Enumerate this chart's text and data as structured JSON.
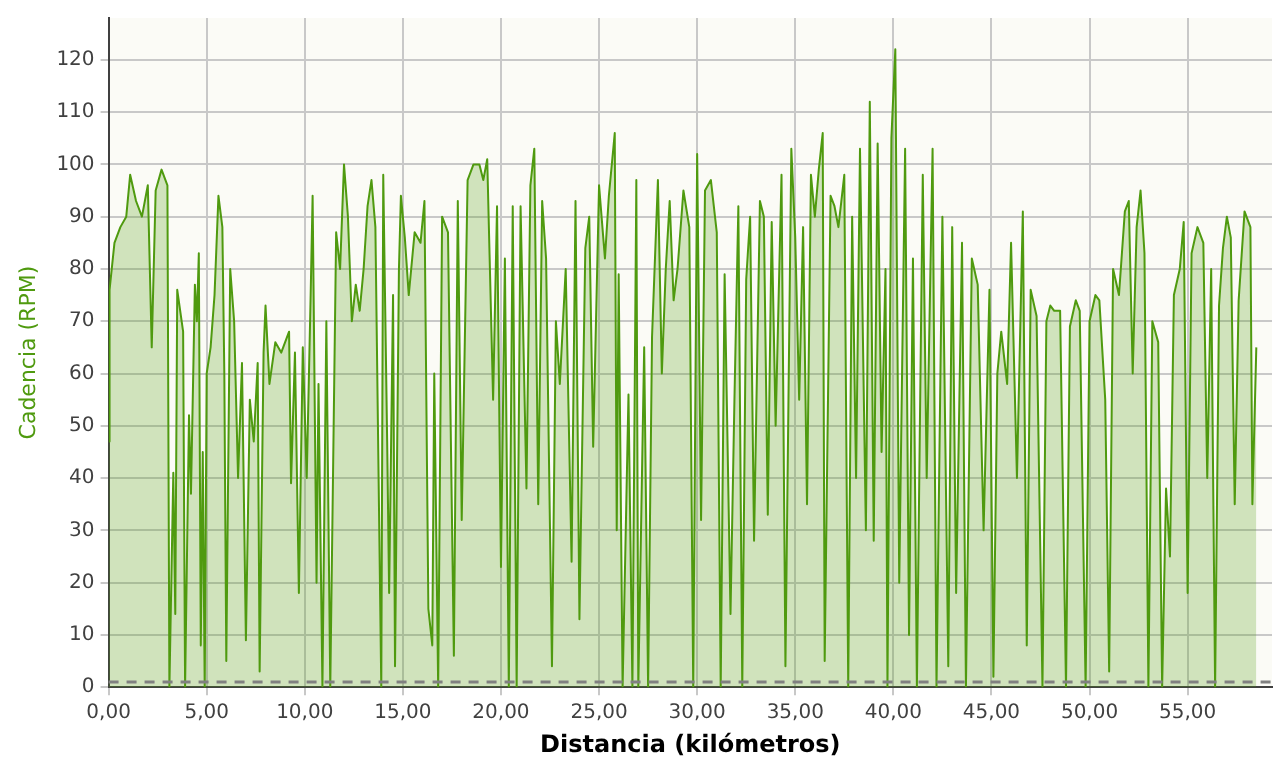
{
  "chart_data": {
    "type": "area",
    "xlabel": "Distancia (kilómetros)",
    "ylabel": "Cadencia (RPM)",
    "xlim": [
      0,
      59.3
    ],
    "ylim": [
      0,
      128
    ],
    "xticks": [
      {
        "value": 0,
        "label": "0,00"
      },
      {
        "value": 5,
        "label": "5,00"
      },
      {
        "value": 10,
        "label": "10,00"
      },
      {
        "value": 15,
        "label": "15,00"
      },
      {
        "value": 20,
        "label": "20,00"
      },
      {
        "value": 25,
        "label": "25,00"
      },
      {
        "value": 30,
        "label": "30,00"
      },
      {
        "value": 35,
        "label": "35,00"
      },
      {
        "value": 40,
        "label": "40,00"
      },
      {
        "value": 45,
        "label": "45,00"
      },
      {
        "value": 50,
        "label": "50,00"
      },
      {
        "value": 55,
        "label": "55,00"
      }
    ],
    "yticks": [
      0,
      10,
      20,
      30,
      40,
      50,
      60,
      70,
      80,
      90,
      100,
      110,
      120
    ],
    "grid": true,
    "legend": false,
    "marker": "none",
    "line_style": "solid",
    "ref_lines": [
      {
        "axis": "y",
        "value": 1,
        "color": "#808080",
        "line_style": "dashed"
      }
    ],
    "series": [
      {
        "color": "#4f9a0f",
        "x": [
          0,
          0.05,
          0.3,
          0.6,
          0.9,
          1.1,
          1.4,
          1.7,
          2.0,
          2.2,
          2.4,
          2.7,
          3.0,
          3.1,
          3.3,
          3.4,
          3.5,
          3.8,
          3.9,
          4.1,
          4.2,
          4.4,
          4.5,
          4.6,
          4.7,
          4.8,
          4.9,
          5.0,
          5.2,
          5.4,
          5.6,
          5.8,
          5.9,
          6.0,
          6.2,
          6.4,
          6.6,
          6.8,
          7.0,
          7.2,
          7.4,
          7.6,
          7.7,
          7.9,
          8.0,
          8.2,
          8.5,
          8.8,
          9.2,
          9.3,
          9.5,
          9.7,
          9.9,
          10.1,
          10.3,
          10.4,
          10.6,
          10.7,
          10.9,
          11.1,
          11.3,
          11.6,
          11.8,
          12.0,
          12.2,
          12.4,
          12.6,
          12.8,
          13.0,
          13.2,
          13.4,
          13.6,
          13.9,
          14.0,
          14.2,
          14.3,
          14.5,
          14.6,
          14.8,
          14.9,
          15.1,
          15.3,
          15.6,
          15.9,
          16.1,
          16.3,
          16.5,
          16.6,
          16.8,
          17.0,
          17.3,
          17.6,
          17.8,
          18.0,
          18.3,
          18.6,
          18.9,
          19.1,
          19.3,
          19.6,
          19.8,
          20.0,
          20.2,
          20.4,
          20.6,
          20.8,
          21.0,
          21.3,
          21.5,
          21.7,
          21.9,
          22.1,
          22.3,
          22.6,
          22.8,
          23.0,
          23.3,
          23.6,
          23.8,
          24.0,
          24.3,
          24.5,
          24.7,
          25.0,
          25.3,
          25.5,
          25.8,
          25.9,
          26.0,
          26.2,
          26.5,
          26.7,
          26.9,
          27.0,
          27.3,
          27.5,
          27.7,
          28.0,
          28.2,
          28.4,
          28.6,
          28.8,
          29.0,
          29.3,
          29.6,
          29.8,
          30.0,
          30.2,
          30.4,
          30.7,
          31.0,
          31.2,
          31.4,
          31.7,
          31.9,
          32.1,
          32.3,
          32.5,
          32.7,
          32.9,
          33.2,
          33.4,
          33.6,
          33.8,
          34.0,
          34.3,
          34.5,
          34.8,
          35.0,
          35.2,
          35.4,
          35.6,
          35.8,
          36.0,
          36.2,
          36.4,
          36.5,
          36.8,
          37.0,
          37.2,
          37.5,
          37.7,
          37.9,
          38.1,
          38.3,
          38.6,
          38.8,
          39.0,
          39.2,
          39.4,
          39.6,
          39.7,
          39.9,
          40.1,
          40.3,
          40.6,
          40.8,
          41.0,
          41.2,
          41.5,
          41.7,
          42.0,
          42.2,
          42.5,
          42.8,
          43.0,
          43.2,
          43.5,
          43.7,
          44.0,
          44.3,
          44.6,
          44.9,
          45.1,
          45.3,
          45.5,
          45.8,
          46.0,
          46.3,
          46.6,
          46.8,
          47.0,
          47.3,
          47.6,
          47.8,
          48.0,
          48.2,
          48.5,
          48.8,
          49.0,
          49.3,
          49.5,
          49.8,
          50.0,
          50.3,
          50.5,
          50.8,
          51.0,
          51.2,
          51.5,
          51.8,
          52.0,
          52.2,
          52.4,
          52.6,
          52.8,
          53.0,
          53.2,
          53.5,
          53.7,
          53.9,
          54.1,
          54.3,
          54.6,
          54.8,
          55.0,
          55.2,
          55.5,
          55.8,
          56.0,
          56.2,
          56.4,
          56.6,
          56.8,
          57.0,
          57.2,
          57.4,
          57.6,
          57.9,
          58.2,
          58.3,
          58.5
        ],
        "values": [
          47,
          76,
          85,
          88,
          90,
          98,
          93,
          90,
          96,
          65,
          95,
          99,
          96,
          0,
          41,
          14,
          76,
          68,
          0,
          52,
          37,
          77,
          70,
          83,
          8,
          45,
          0,
          60,
          65,
          75,
          94,
          88,
          60,
          5,
          80,
          70,
          40,
          62,
          9,
          55,
          47,
          62,
          3,
          64,
          73,
          58,
          66,
          64,
          68,
          39,
          64,
          18,
          65,
          40,
          75,
          94,
          20,
          58,
          0,
          70,
          0,
          87,
          80,
          100,
          90,
          70,
          77,
          72,
          80,
          92,
          97,
          88,
          0,
          98,
          47,
          18,
          75,
          4,
          80,
          94,
          86,
          75,
          87,
          85,
          93,
          15,
          8,
          60,
          0,
          90,
          87,
          6,
          93,
          32,
          97,
          100,
          100,
          97,
          101,
          55,
          92,
          23,
          82,
          0,
          92,
          0,
          92,
          38,
          96,
          103,
          35,
          93,
          82,
          4,
          70,
          58,
          80,
          24,
          93,
          13,
          84,
          90,
          46,
          96,
          82,
          94,
          106,
          30,
          79,
          0,
          56,
          0,
          97,
          0,
          65,
          0,
          67,
          97,
          60,
          80,
          93,
          74,
          80,
          95,
          88,
          0,
          102,
          32,
          95,
          97,
          87,
          0,
          79,
          14,
          55,
          92,
          0,
          78,
          90,
          28,
          93,
          90,
          33,
          89,
          50,
          98,
          4,
          103,
          86,
          55,
          88,
          35,
          98,
          90,
          99,
          106,
          5,
          94,
          92,
          88,
          98,
          0,
          90,
          40,
          103,
          30,
          112,
          28,
          104,
          45,
          80,
          0,
          105,
          122,
          20,
          103,
          10,
          82,
          0,
          98,
          40,
          103,
          0,
          90,
          4,
          88,
          18,
          85,
          0,
          82,
          77,
          30,
          76,
          2,
          60,
          68,
          58,
          85,
          40,
          91,
          8,
          76,
          71,
          0,
          70,
          73,
          72,
          72,
          0,
          69,
          74,
          72,
          0,
          70,
          75,
          74,
          55,
          3,
          80,
          75,
          91,
          93,
          60,
          88,
          95,
          83,
          0,
          70,
          66,
          0,
          38,
          25,
          75,
          80,
          89,
          18,
          83,
          88,
          85,
          40,
          80,
          0,
          73,
          84,
          90,
          86,
          35,
          74,
          91,
          88,
          35,
          65
        ]
      }
    ]
  }
}
